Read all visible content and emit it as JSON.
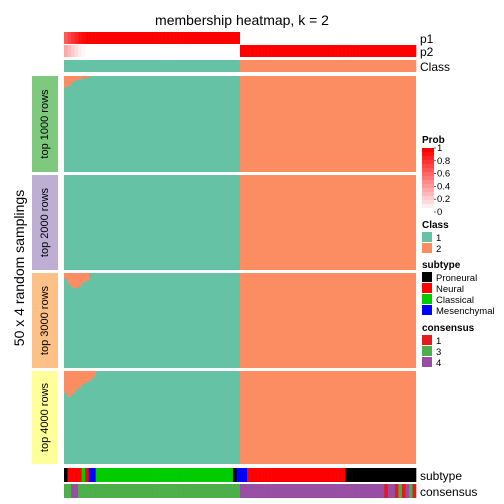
{
  "chart_data": {
    "type": "heatmap",
    "title": "membership heatmap, k = 2",
    "ylabel": "50 x 4 random samplings",
    "n_columns": 100,
    "column_split_at": 50,
    "column_annotations_top": [
      {
        "name": "p1"
      },
      {
        "name": "p2"
      },
      {
        "name": "Class"
      }
    ],
    "row_groups": [
      {
        "label": "top 1000 rows",
        "color": "#7fc97f"
      },
      {
        "label": "top 2000 rows",
        "color": "#beaed4"
      },
      {
        "label": "top 3000 rows",
        "color": "#fdc086"
      },
      {
        "label": "top 4000 rows",
        "color": "#ffff99"
      }
    ],
    "rows_per_group": 50,
    "class_colors": {
      "1": "#66c2a5",
      "2": "#fc8d62"
    },
    "column_annotations_bottom": [
      {
        "name": "subtype"
      },
      {
        "name": "consensus"
      }
    ],
    "legends": {
      "prob": {
        "title": "Prob",
        "ticks": [
          "1",
          "0.8",
          "0.6",
          "0.4",
          "0.2",
          "0"
        ],
        "color_low": "#ffffff",
        "color_high": "#ff0000"
      },
      "class": {
        "title": "Class",
        "entries": [
          {
            "label": "1",
            "color": "#66c2a5"
          },
          {
            "label": "2",
            "color": "#fc8d62"
          }
        ]
      },
      "subtype": {
        "title": "subtype",
        "entries": [
          {
            "label": "Proneural",
            "color": "#000000"
          },
          {
            "label": "Neural",
            "color": "#ff0000"
          },
          {
            "label": "Classical",
            "color": "#00cc00"
          },
          {
            "label": "Mesenchymal",
            "color": "#0000ff"
          }
        ]
      },
      "consensus": {
        "title": "consensus",
        "entries": [
          {
            "label": "1",
            "color": "#e41a1c"
          },
          {
            "label": "3",
            "color": "#4daf4a"
          },
          {
            "label": "4",
            "color": "#984ea3"
          }
        ]
      }
    },
    "p1_values": [
      0.65,
      0.72,
      0.8,
      0.86,
      0.93,
      0.97,
      1,
      1,
      1,
      1,
      1,
      1,
      1,
      1,
      1,
      1,
      1,
      1,
      1,
      1,
      1,
      1,
      1,
      1,
      1,
      1,
      1,
      1,
      1,
      1,
      1,
      1,
      1,
      1,
      1,
      1,
      1,
      1,
      1,
      1,
      1,
      1,
      1,
      1,
      1,
      1,
      1,
      1,
      1,
      1,
      0,
      0,
      0,
      0,
      0,
      0,
      0,
      0,
      0,
      0,
      0,
      0,
      0,
      0,
      0,
      0,
      0,
      0,
      0,
      0,
      0,
      0,
      0,
      0,
      0,
      0,
      0,
      0,
      0,
      0,
      0,
      0,
      0,
      0,
      0,
      0,
      0,
      0,
      0,
      0,
      0,
      0,
      0,
      0,
      0,
      0,
      0,
      0,
      0,
      0
    ],
    "subtype_values": [
      "Proneural",
      "Neural",
      "Neural",
      "Neural",
      "Neural",
      "Classical",
      "Neural",
      "Mesenchymal",
      "Mesenchymal",
      "Classical",
      "Classical",
      "Classical",
      "Classical",
      "Classical",
      "Classical",
      "Classical",
      "Classical",
      "Classical",
      "Classical",
      "Classical",
      "Classical",
      "Classical",
      "Classical",
      "Classical",
      "Classical",
      "Classical",
      "Classical",
      "Classical",
      "Classical",
      "Classical",
      "Classical",
      "Classical",
      "Classical",
      "Classical",
      "Classical",
      "Classical",
      "Classical",
      "Classical",
      "Classical",
      "Classical",
      "Classical",
      "Classical",
      "Classical",
      "Classical",
      "Classical",
      "Classical",
      "Classical",
      "Classical",
      "Proneural",
      "Mesenchymal",
      "Mesenchymal",
      "Mesenchymal",
      "Neural",
      "Neural",
      "Neural",
      "Neural",
      "Neural",
      "Neural",
      "Neural",
      "Neural",
      "Neural",
      "Neural",
      "Neural",
      "Neural",
      "Neural",
      "Neural",
      "Neural",
      "Neural",
      "Neural",
      "Neural",
      "Neural",
      "Neural",
      "Neural",
      "Neural",
      "Neural",
      "Neural",
      "Neural",
      "Neural",
      "Neural",
      "Neural",
      "Proneural",
      "Proneural",
      "Proneural",
      "Proneural",
      "Proneural",
      "Proneural",
      "Proneural",
      "Proneural",
      "Proneural",
      "Proneural",
      "Proneural",
      "Proneural",
      "Proneural",
      "Proneural",
      "Proneural",
      "Proneural",
      "Proneural",
      "Proneural",
      "Proneural",
      "Proneural"
    ],
    "consensus_values": [
      "3",
      "3",
      "4",
      "4",
      "3",
      "3",
      "3",
      "3",
      "3",
      "3",
      "3",
      "3",
      "3",
      "3",
      "3",
      "3",
      "3",
      "3",
      "3",
      "3",
      "3",
      "3",
      "3",
      "3",
      "3",
      "3",
      "3",
      "3",
      "3",
      "3",
      "3",
      "3",
      "3",
      "3",
      "3",
      "3",
      "3",
      "3",
      "3",
      "3",
      "3",
      "3",
      "3",
      "3",
      "3",
      "3",
      "3",
      "3",
      "3",
      "3",
      "4",
      "4",
      "4",
      "4",
      "4",
      "4",
      "4",
      "4",
      "4",
      "4",
      "4",
      "4",
      "4",
      "4",
      "4",
      "4",
      "4",
      "4",
      "4",
      "4",
      "4",
      "4",
      "4",
      "4",
      "4",
      "4",
      "4",
      "4",
      "4",
      "4",
      "4",
      "4",
      "4",
      "4",
      "4",
      "4",
      "4",
      "4",
      "4",
      "4",
      "4",
      "1",
      "4",
      "4",
      "1",
      "3",
      "1",
      "4",
      "3",
      "1"
    ],
    "group_misclassified_rows": [
      [
        6,
        5,
        3,
        2,
        2,
        1,
        1
      ],
      [],
      [
        3,
        6,
        8,
        8,
        7,
        5,
        4
      ],
      [
        12,
        14,
        12,
        10,
        9,
        7,
        6,
        5,
        3
      ]
    ]
  }
}
